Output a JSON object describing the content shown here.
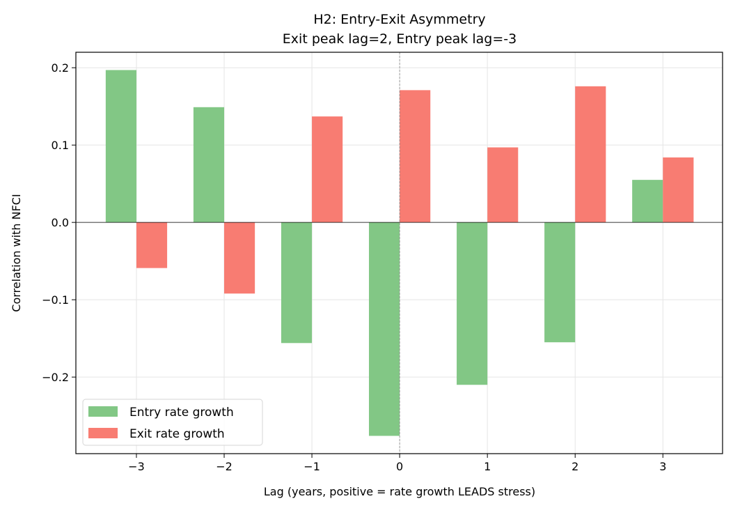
{
  "chart_data": {
    "type": "bar",
    "title": "H2: Entry-Exit Asymmetry",
    "subtitle": "Exit peak lag=2, Entry peak lag=-3",
    "xlabel": "Lag (years, positive = rate growth LEADS stress)",
    "ylabel": "Correlation with NFCI",
    "x": [
      -3,
      -2,
      -1,
      0,
      1,
      2,
      3
    ],
    "xtick_labels": [
      "−3",
      "−2",
      "−1",
      "0",
      "1",
      "2",
      "3"
    ],
    "yticks": [
      -0.2,
      -0.1,
      0.0,
      0.1,
      0.2
    ],
    "ytick_labels": [
      "−0.2",
      "−0.1",
      "0.0",
      "0.1",
      "0.2"
    ],
    "xlim": [
      -3.69,
      3.68
    ],
    "ylim": [
      -0.299,
      0.22
    ],
    "grid": true,
    "legend_position": "lower-left",
    "series": [
      {
        "name": "Entry rate growth",
        "color": "#82c785",
        "values": [
          0.197,
          0.149,
          -0.156,
          -0.276,
          -0.21,
          -0.155,
          0.055
        ]
      },
      {
        "name": "Exit rate growth",
        "color": "#f87c72",
        "values": [
          -0.059,
          -0.092,
          0.137,
          0.171,
          0.097,
          0.176,
          0.084
        ]
      }
    ]
  }
}
